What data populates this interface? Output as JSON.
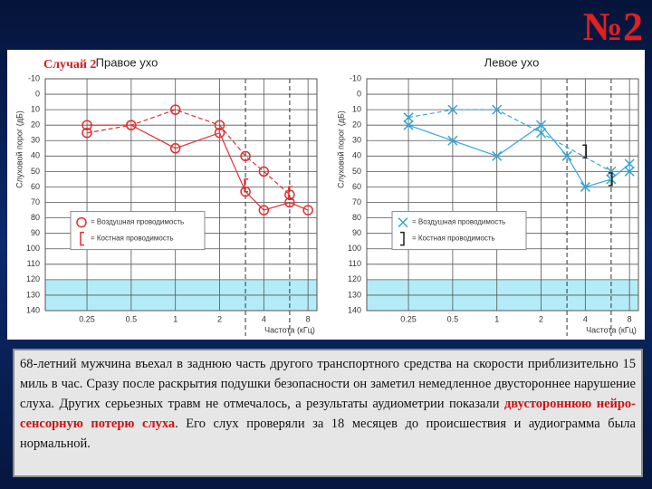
{
  "slide_number": "№2",
  "case_label": "Случай 2",
  "text": [
    "68-летний мужчина въехал в заднюю часть другого транспортного средства на скорости приблизительно 15 миль в час. Сразу после раскрытия подушки безопасности он заметил немедленное двустороннее нарушение слуха. Других серьезных травм не отмечалось, а результаты аудиометрии показали ",
    "двустороннюю нейро-сенсорную потерю слуха",
    ". Его слух проверяли за 18 месяцев до происшествия и аудиограмма была нормальной."
  ],
  "chart_data": [
    {
      "type": "line",
      "title": "Правое ухо",
      "x_label": "Частота (кГц)",
      "y_label": "Слуховой порог (дБ)",
      "xlog": true,
      "xlim": [
        0.13,
        9.2
      ],
      "xticks": [
        0.25,
        0.5,
        1,
        2,
        4,
        8
      ],
      "x_dashed": [
        3,
        6
      ],
      "ylim": [
        -10,
        140
      ],
      "y_inverted": true,
      "yticks": [
        -10,
        0,
        10,
        20,
        30,
        40,
        50,
        60,
        70,
        80,
        90,
        100,
        110,
        120,
        130,
        140
      ],
      "shade": [
        120,
        140
      ],
      "shade_color": "#b3ecf7",
      "grid": true,
      "series": [
        {
          "name": "= Воздушная проводимость",
          "color": "#e03030",
          "marker": "o",
          "dash": false,
          "x": [
            0.25,
            0.5,
            1,
            2,
            3,
            4,
            6,
            8
          ],
          "values": [
            20,
            20,
            35,
            25,
            63,
            75,
            70,
            75
          ]
        },
        {
          "color": "#e03030",
          "marker": "o",
          "dash": true,
          "x": [
            0.25,
            0.5,
            1,
            2,
            3,
            4,
            6
          ],
          "values": [
            25,
            20,
            10,
            20,
            40,
            50,
            65
          ]
        },
        {
          "name": "= Костная проводимость",
          "color": "#e03030",
          "marker": "[",
          "line": false,
          "x": [
            3,
            6
          ],
          "values": [
            59,
            64
          ]
        }
      ]
    },
    {
      "type": "line",
      "title": "Левое ухо",
      "x_label": "Частота (кГц)",
      "y_label": "Слуховой порог (дБ)",
      "xlog": true,
      "xlim": [
        0.13,
        9.2
      ],
      "xticks": [
        0.25,
        0.5,
        1,
        2,
        4,
        8
      ],
      "x_dashed": [
        3,
        6
      ],
      "ylim": [
        -10,
        140
      ],
      "y_inverted": true,
      "yticks": [
        -10,
        0,
        10,
        20,
        30,
        40,
        50,
        60,
        70,
        80,
        90,
        100,
        110,
        120,
        130,
        140
      ],
      "shade": [
        120,
        140
      ],
      "shade_color": "#b3ecf7",
      "grid": true,
      "series": [
        {
          "name": "= Воздушная проводимость",
          "color": "#30a8d8",
          "marker": "x",
          "dash": false,
          "x": [
            0.25,
            0.5,
            1,
            2,
            3,
            4,
            6,
            8
          ],
          "values": [
            20,
            30,
            40,
            20,
            40,
            60,
            55,
            45
          ]
        },
        {
          "color": "#30a8d8",
          "marker": "x",
          "dash": true,
          "x": [
            0.25,
            0.5,
            1,
            2,
            6,
            8
          ],
          "values": [
            15,
            10,
            10,
            25,
            50,
            50
          ]
        },
        {
          "name": "= Костная проводимость",
          "color": "#222222",
          "marker": "]",
          "line": false,
          "x": [
            4,
            6
          ],
          "values": [
            37,
            55
          ]
        }
      ]
    }
  ]
}
